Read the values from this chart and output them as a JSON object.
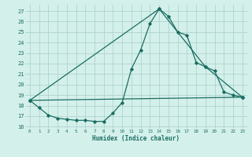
{
  "xlabel": "Humidex (Indice chaleur)",
  "bg_color": "#d4f0eb",
  "grid_color": "#aed4ce",
  "line_color": "#1a6e62",
  "xlim": [
    -0.5,
    23.5
  ],
  "ylim": [
    15.8,
    27.6
  ],
  "yticks": [
    16,
    17,
    18,
    19,
    20,
    21,
    22,
    23,
    24,
    25,
    26,
    27
  ],
  "xticks": [
    0,
    1,
    2,
    3,
    4,
    5,
    6,
    7,
    8,
    9,
    10,
    11,
    12,
    13,
    14,
    15,
    16,
    17,
    18,
    19,
    20,
    21,
    22,
    23
  ],
  "series1_x": [
    0,
    1,
    2,
    3,
    4,
    5,
    6,
    7,
    8,
    9,
    10,
    11,
    12,
    13,
    14,
    15,
    16,
    17,
    18,
    19,
    20,
    21,
    22,
    23
  ],
  "series1_y": [
    18.5,
    17.8,
    17.1,
    16.8,
    16.7,
    16.6,
    16.6,
    16.5,
    16.5,
    17.3,
    18.3,
    21.5,
    23.3,
    25.8,
    27.2,
    26.5,
    25.0,
    24.7,
    22.1,
    21.7,
    21.3,
    19.3,
    19.0,
    18.8
  ],
  "series2_x": [
    0,
    14,
    19,
    23
  ],
  "series2_y": [
    18.5,
    27.2,
    21.7,
    18.8
  ],
  "series3_x": [
    0,
    23
  ],
  "series3_y": [
    18.5,
    18.8
  ]
}
